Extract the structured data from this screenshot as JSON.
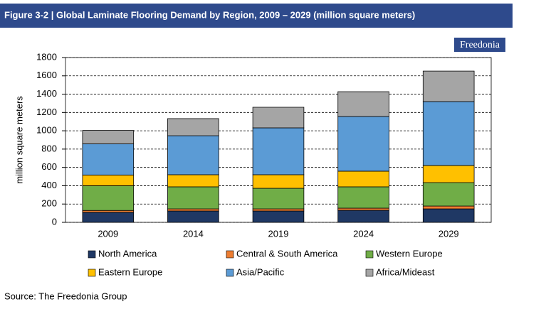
{
  "chart_data": {
    "type": "stacked-bar",
    "title": "Figure 3-2 | Global Laminate Flooring Demand by Region, 2009 – 2029 (million square meters)",
    "y_label": "million square meters",
    "categories": [
      "2009",
      "2014",
      "2019",
      "2024",
      "2029"
    ],
    "series": [
      {
        "name": "North America",
        "color": "#1f3864",
        "values": [
          110,
          124,
          124,
          132,
          147
        ]
      },
      {
        "name": "Central & South America",
        "color": "#ed7d31",
        "values": [
          20,
          23,
          23,
          23,
          31
        ]
      },
      {
        "name": "Western Europe",
        "color": "#70ad47",
        "values": [
          270,
          241,
          225,
          233,
          256
        ]
      },
      {
        "name": "Eastern Europe",
        "color": "#ffc000",
        "values": [
          117,
          132,
          148,
          171,
          187
        ]
      },
      {
        "name": "Asia/Pacific",
        "color": "#5b9bd5",
        "values": [
          340,
          426,
          512,
          597,
          698
        ]
      },
      {
        "name": "Africa/Mideast",
        "color": "#a5a5a5",
        "values": [
          147,
          187,
          225,
          271,
          333
        ]
      }
    ],
    "ylim": [
      0,
      1800
    ],
    "yticks": [
      0,
      200,
      400,
      600,
      800,
      1000,
      1200,
      1400,
      1600,
      1800
    ],
    "grid": true
  },
  "branding": {
    "logo": "Freedonia"
  },
  "source": "Source: The Freedonia Group"
}
